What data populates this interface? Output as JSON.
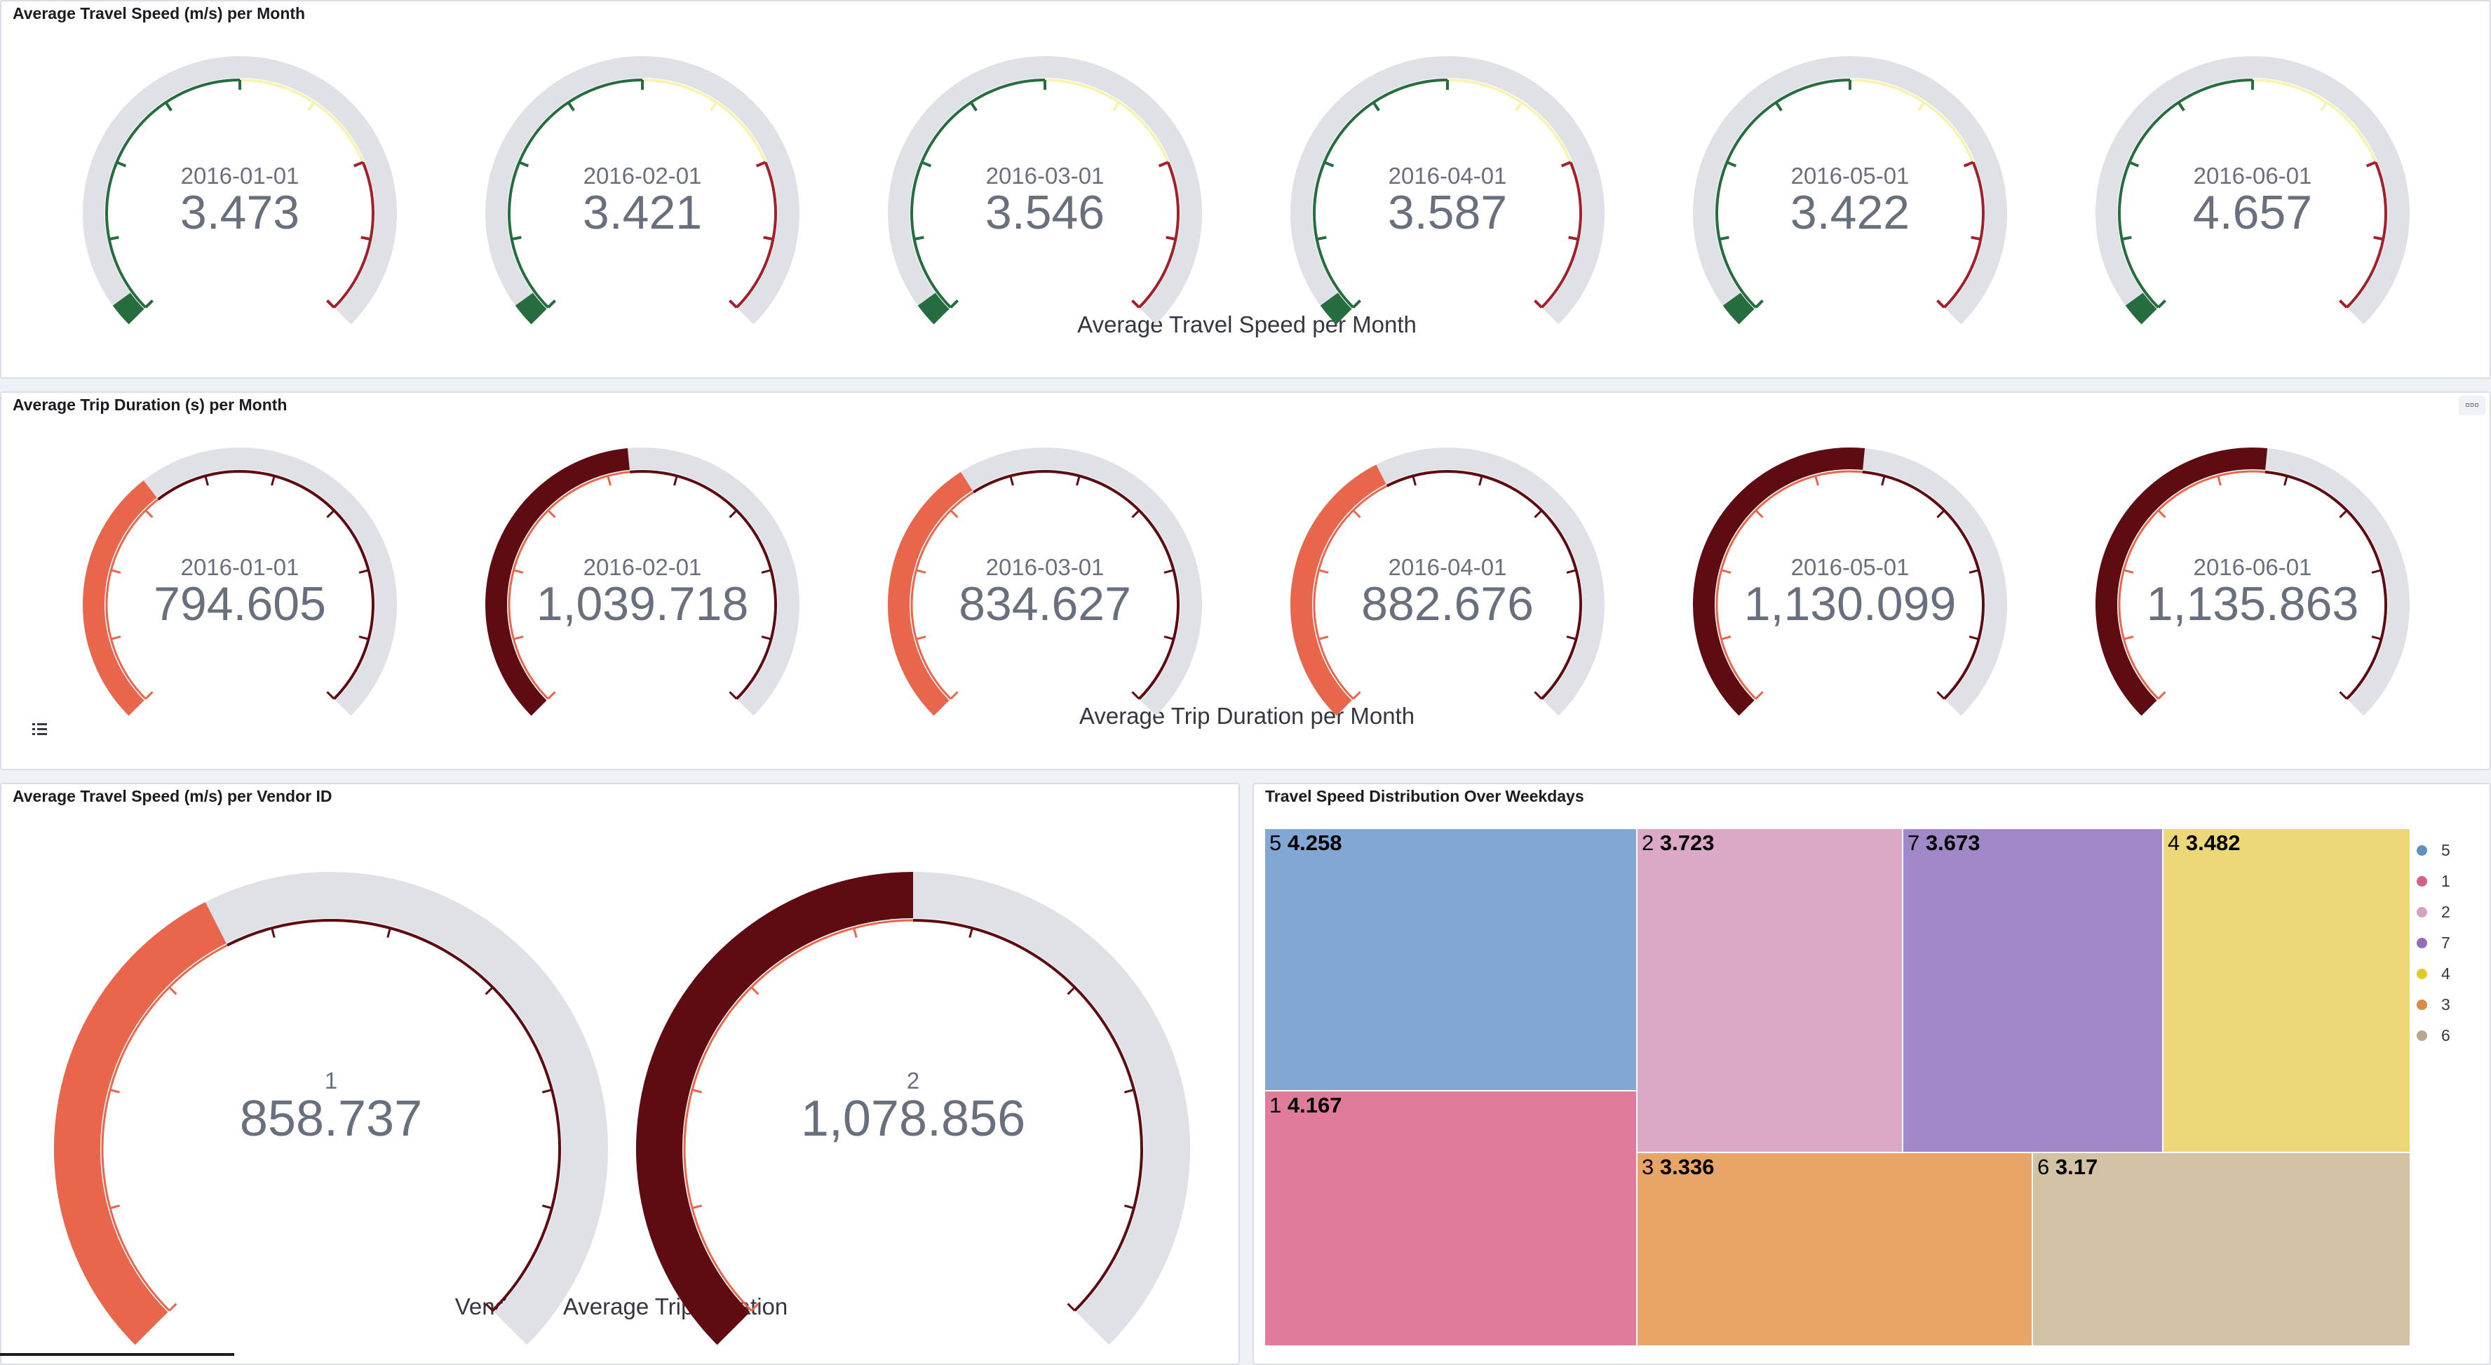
{
  "panels": {
    "speed_month": {
      "title": "Average Travel Speed (m/s) per Month",
      "caption": "Average Travel Speed per Month",
      "gauges": [
        {
          "label": "2016-01-01",
          "value": "3.473"
        },
        {
          "label": "2016-02-01",
          "value": "3.421"
        },
        {
          "label": "2016-03-01",
          "value": "3.546"
        },
        {
          "label": "2016-04-01",
          "value": "3.587"
        },
        {
          "label": "2016-05-01",
          "value": "3.422"
        },
        {
          "label": "2016-06-01",
          "value": "4.657"
        }
      ]
    },
    "duration_month": {
      "title": "Average Trip Duration (s) per Month",
      "caption": "Average Trip Duration per Month",
      "options_icon": "options-icon",
      "legend_toggle_icon": "list-icon",
      "gauges": [
        {
          "label": "2016-01-01",
          "value": "794.605",
          "fill": 0.36,
          "color": "#e7664c"
        },
        {
          "label": "2016-02-01",
          "value": "1,039.718",
          "fill": 0.48,
          "color": "#5e0b12"
        },
        {
          "label": "2016-03-01",
          "value": "834.627",
          "fill": 0.38,
          "color": "#e7664c"
        },
        {
          "label": "2016-04-01",
          "value": "882.676",
          "fill": 0.4,
          "color": "#e7664c"
        },
        {
          "label": "2016-05-01",
          "value": "1,130.099",
          "fill": 0.52,
          "color": "#5e0b12"
        },
        {
          "label": "2016-06-01",
          "value": "1,135.863",
          "fill": 0.52,
          "color": "#5e0b12"
        }
      ]
    },
    "speed_vendor": {
      "title": "Average Travel Speed (m/s) per Vendor ID",
      "caption": "Vendor ID Average Trip Duration",
      "gauges": [
        {
          "label": "1",
          "value": "858.737",
          "fill": 0.4,
          "color": "#e7664c"
        },
        {
          "label": "2",
          "value": "1,078.856",
          "fill": 0.5,
          "color": "#5e0b12"
        }
      ]
    },
    "weekday_treemap": {
      "title": "Travel Speed Distribution Over Weekdays",
      "cells": [
        {
          "key": "5",
          "value": "4.258",
          "color": "#82a7d4"
        },
        {
          "key": "1",
          "value": "4.167",
          "color": "#df7c9b"
        },
        {
          "key": "2",
          "value": "3.723",
          "color": "#dba8c6"
        },
        {
          "key": "7",
          "value": "3.673",
          "color": "#a189c9"
        },
        {
          "key": "4",
          "value": "3.482",
          "color": "#ecd879"
        },
        {
          "key": "3",
          "value": "3.336",
          "color": "#e8a567"
        },
        {
          "key": "6",
          "value": "3.17",
          "color": "#d2c2a3"
        }
      ],
      "legend": [
        {
          "label": "5",
          "color": "#6092c0"
        },
        {
          "label": "1",
          "color": "#d36086"
        },
        {
          "label": "2",
          "color": "#d5a0c3"
        },
        {
          "label": "7",
          "color": "#9170b8"
        },
        {
          "label": "4",
          "color": "#e0c92c"
        },
        {
          "label": "3",
          "color": "#da8b45"
        },
        {
          "label": "6",
          "color": "#b9a888"
        }
      ]
    }
  },
  "colors": {
    "track": "#e0e1e6",
    "speed_good": "#256c3f",
    "speed_warn": "#f6f4b0",
    "speed_bad": "#a3202a",
    "duration_tick": "#5e0b12",
    "duration_low": "#e7664c",
    "duration_high": "#5e0b12"
  }
}
